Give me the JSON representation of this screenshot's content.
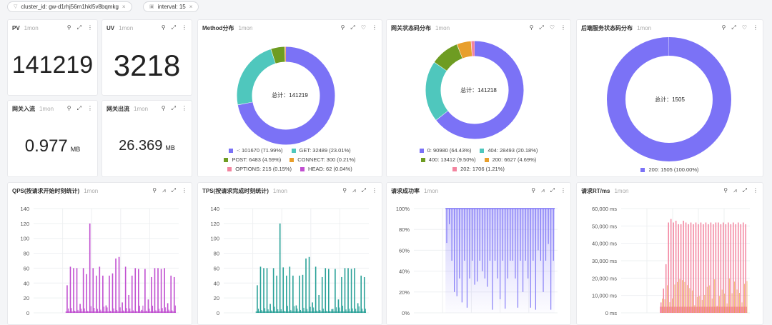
{
  "filters": [
    {
      "icon": "filter-icon",
      "label": "cluster_id: gw-d1rhj56m1hkl5v8bqmkg"
    },
    {
      "icon": "calendar-icon",
      "label": "interval: 15"
    }
  ],
  "range_label": "1mon",
  "stats": [
    {
      "title": "PV",
      "value": "141219",
      "unit": ""
    },
    {
      "title": "UV",
      "value": "3218",
      "unit": ""
    },
    {
      "title": "网关入流",
      "value": "0.977",
      "unit": "MB"
    },
    {
      "title": "网关出流",
      "value": "26.369",
      "unit": "MB"
    }
  ],
  "donuts": [
    {
      "title": "Method分布",
      "total_label": "总计：141219",
      "slices": [
        {
          "label": "-: 101670 (71.99%)",
          "value": 101670,
          "color": "#7b72f6"
        },
        {
          "label": "GET: 32489 (23.01%)",
          "value": 32489,
          "color": "#4fc7bd"
        },
        {
          "label": "POST: 6483 (4.59%)",
          "value": 6483,
          "color": "#6e9c22"
        },
        {
          "label": "CONNECT: 300 (0.21%)",
          "value": 300,
          "color": "#e89f2c"
        },
        {
          "label": "OPTIONS: 215 (0.15%)",
          "value": 215,
          "color": "#f3849f"
        },
        {
          "label": "HEAD: 62 (0.04%)",
          "value": 62,
          "color": "#c04fd0"
        }
      ]
    },
    {
      "title": "网关状态码分布",
      "total_label": "总计：141218",
      "slices": [
        {
          "label": "0: 90980 (64.43%)",
          "value": 90980,
          "color": "#7b72f6"
        },
        {
          "label": "404: 28493 (20.18%)",
          "value": 28493,
          "color": "#4fc7bd"
        },
        {
          "label": "400: 13412 (9.50%)",
          "value": 13412,
          "color": "#6e9c22"
        },
        {
          "label": "200: 6627 (4.69%)",
          "value": 6627,
          "color": "#e89f2c"
        },
        {
          "label": "202: 1706 (1.21%)",
          "value": 1706,
          "color": "#f3849f"
        }
      ]
    },
    {
      "title": "后端服务状态码分布",
      "total_label": "总计：1505",
      "slices": [
        {
          "label": "200: 1505 (100.00%)",
          "value": 1505,
          "color": "#7b72f6"
        }
      ]
    }
  ],
  "chart_data": [
    {
      "type": "bar",
      "title": "QPS(按请求开始时刻统计)",
      "color": "#c04fd0",
      "ylim": [
        0,
        140
      ],
      "yticks": [
        "0",
        "20",
        "40",
        "60",
        "80",
        "100",
        "120",
        "140"
      ],
      "grid": true,
      "peaks": [
        37,
        62,
        60,
        60,
        12,
        60,
        52,
        120,
        60,
        50,
        62,
        50,
        10,
        50,
        53,
        73,
        75,
        14,
        62,
        24,
        50,
        60,
        59,
        4,
        59,
        18,
        48,
        60,
        60,
        59,
        60,
        13,
        50,
        48
      ]
    },
    {
      "type": "bar",
      "title": "TPS(按请求完成时刻统计)",
      "color": "#2aa198",
      "ylim": [
        0,
        140
      ],
      "yticks": [
        "0",
        "20",
        "40",
        "60",
        "80",
        "100",
        "120",
        "140"
      ],
      "grid": true,
      "peaks": [
        37,
        62,
        60,
        60,
        12,
        60,
        50,
        120,
        61,
        50,
        62,
        50,
        10,
        50,
        51,
        73,
        75,
        14,
        62,
        24,
        48,
        60,
        59,
        5,
        59,
        18,
        48,
        60,
        60,
        59,
        60,
        13,
        50,
        48
      ]
    },
    {
      "type": "area",
      "title": "请求成功率",
      "color": "#7b72f6",
      "ylim": [
        0,
        100
      ],
      "yticks": [
        "0%",
        "20%",
        "40%",
        "60%",
        "80%",
        "100%"
      ],
      "grid": true,
      "dips": [
        67,
        85,
        50,
        20,
        16,
        33,
        10,
        50,
        5,
        33,
        50,
        27,
        30,
        50,
        40,
        33,
        25,
        50,
        3,
        50,
        33,
        13,
        50,
        4,
        33,
        50,
        50,
        33,
        5,
        50,
        20,
        50,
        33,
        5,
        50,
        3,
        60,
        50,
        20,
        50,
        66,
        3,
        50
      ]
    },
    {
      "type": "area",
      "title": "请求RT/ms",
      "color": "#f3849f",
      "color2": "#e89f2c",
      "ylim": [
        0,
        60000
      ],
      "yticks": [
        "0 ms",
        "10,000 ms",
        "20,000 ms",
        "30,000 ms",
        "40,000 ms",
        "50,000 ms",
        "60,000 ms"
      ],
      "grid": true,
      "peaks": [
        6000,
        14000,
        28000,
        52000,
        54000,
        52000,
        53000,
        51000,
        51000,
        53000,
        52000,
        51000,
        52000,
        51000,
        52000,
        51000,
        52000,
        51000,
        52000,
        51000,
        52000,
        51000,
        52000,
        52000,
        51000,
        52000,
        51000,
        52000,
        51000,
        52000,
        51000,
        52000,
        51000,
        52000,
        51000
      ]
    }
  ]
}
